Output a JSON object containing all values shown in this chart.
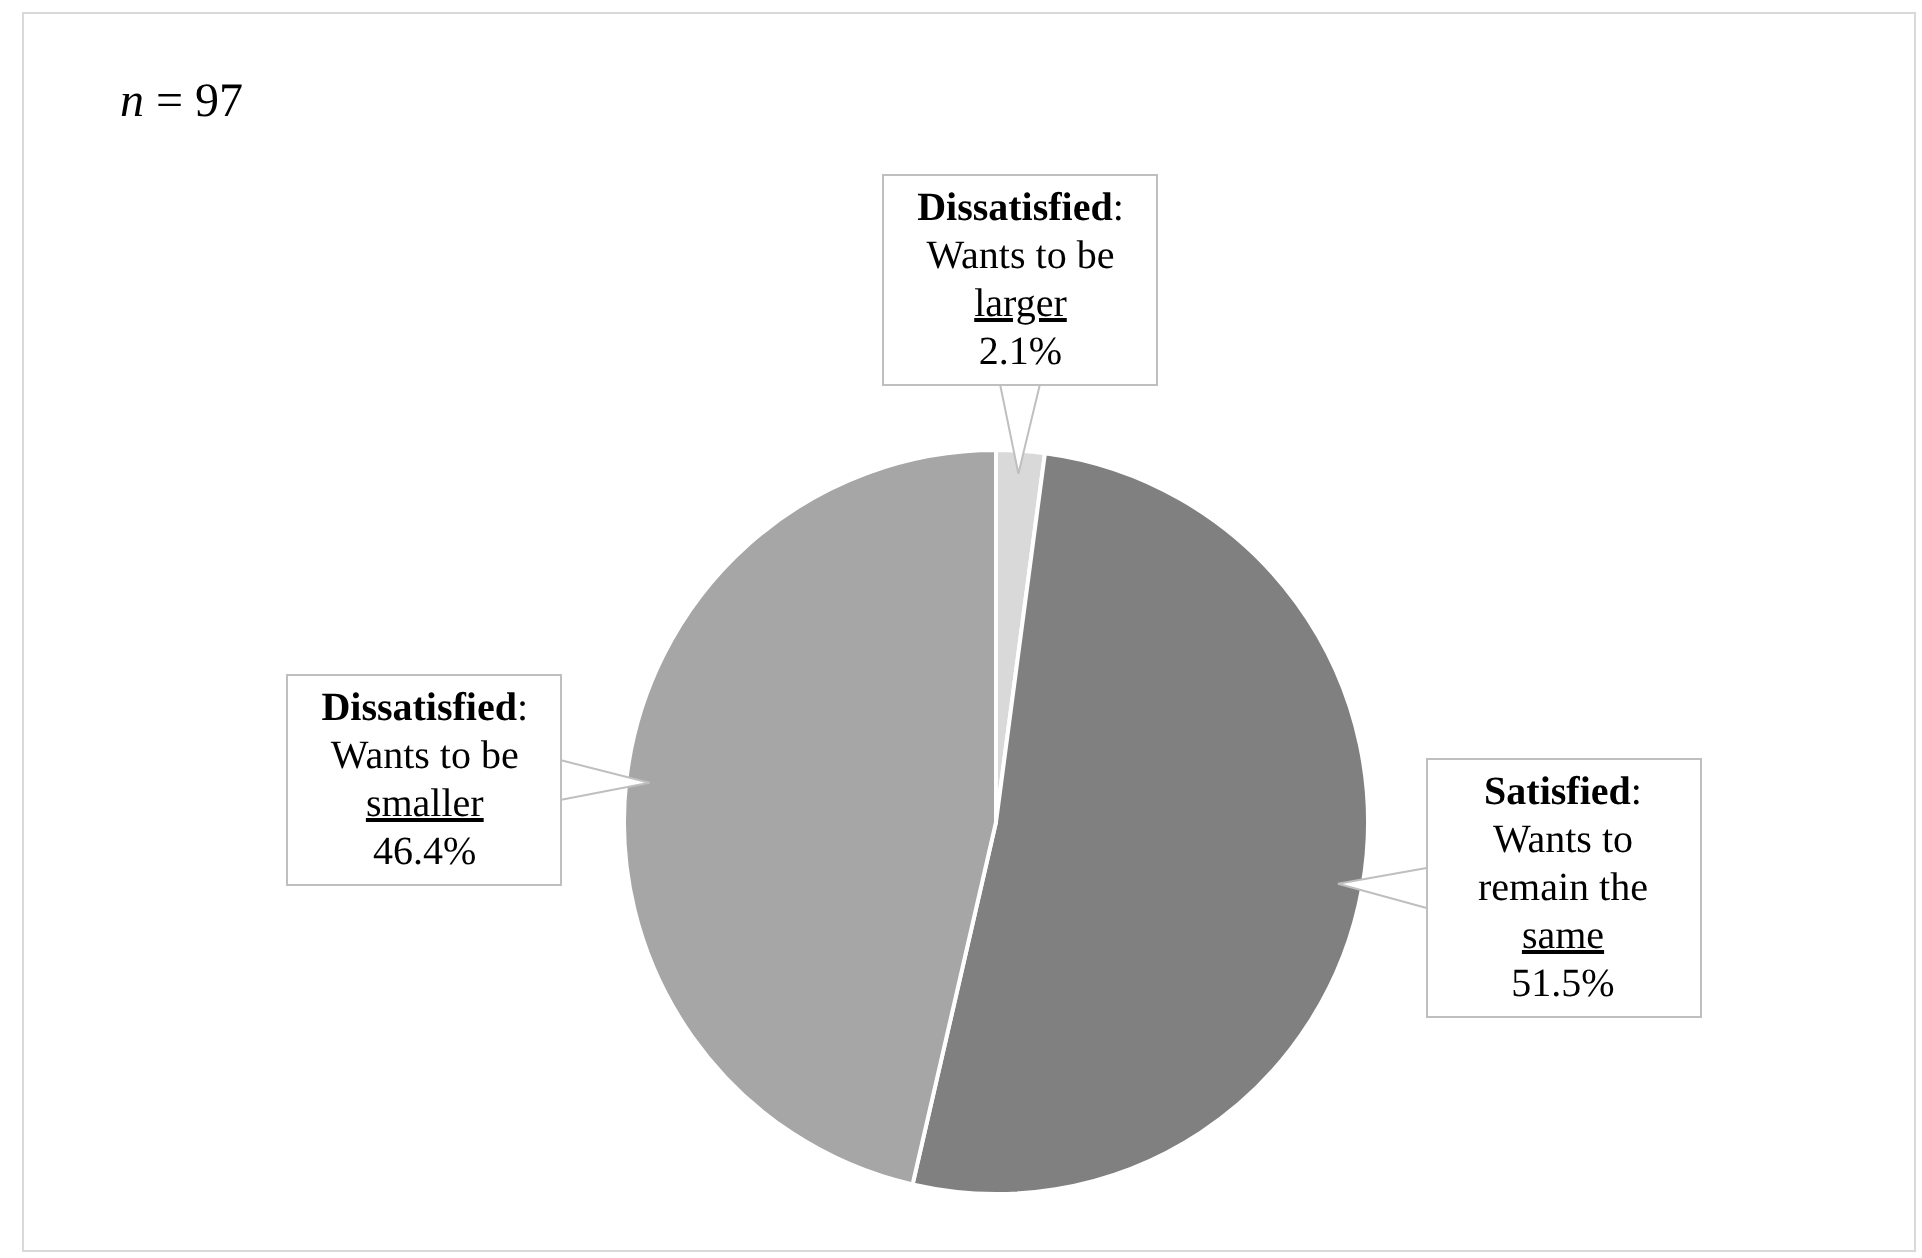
{
  "chart_data": {
    "type": "pie",
    "categories": [
      "Dissatisfied: Wants to be larger",
      "Satisfied: Wants to remain the same",
      "Dissatisfied: Wants to be smaller"
    ],
    "values": [
      2.1,
      51.5,
      46.4
    ],
    "colors": [
      "#d9d9d9",
      "#808080",
      "#a6a6a6"
    ],
    "value_labels": [
      "2.1%",
      "51.5%",
      "46.4%"
    ],
    "annotations": [
      "n = 97"
    ],
    "legend": false
  }
}
